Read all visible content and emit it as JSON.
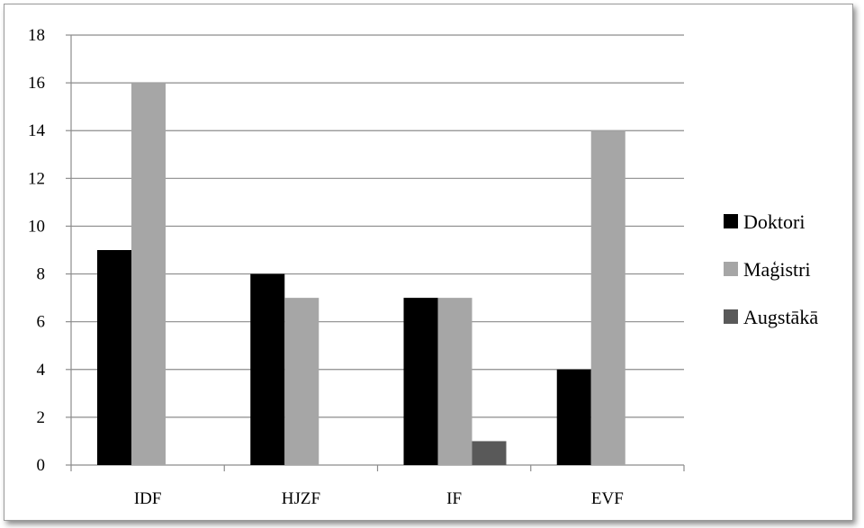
{
  "chart_data": {
    "type": "bar",
    "title": "",
    "xlabel": "",
    "ylabel": "",
    "categories": [
      "IDF",
      "HJZF",
      "IF",
      "EVF"
    ],
    "series": [
      {
        "name": "Doktori",
        "values": [
          9,
          8,
          7,
          4
        ],
        "color": "#000000"
      },
      {
        "name": "Maģistri",
        "values": [
          16,
          7,
          7,
          14
        ],
        "color": "#a6a6a6"
      },
      {
        "name": "Augstākā",
        "values": [
          0,
          0,
          1,
          0
        ],
        "color": "#595959"
      }
    ],
    "ylim": [
      0,
      18
    ],
    "yticks": [
      "0",
      "2",
      "4",
      "6",
      "8",
      "10",
      "12",
      "14",
      "16",
      "18"
    ],
    "grid": true,
    "legend_position": "right"
  }
}
